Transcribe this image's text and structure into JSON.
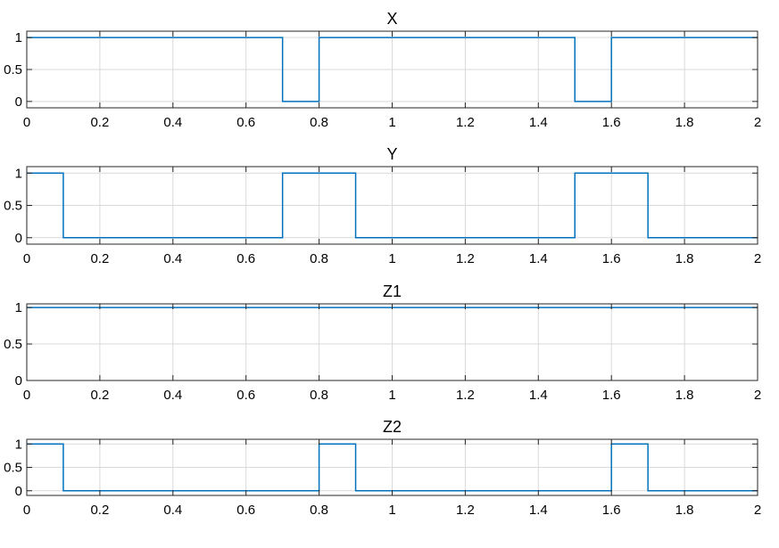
{
  "chart_data": [
    {
      "type": "line",
      "title": "X",
      "xlim": [
        0,
        2
      ],
      "ylim": [
        -0.1,
        1.1
      ],
      "xticks": [
        0,
        0.2,
        0.4,
        0.6,
        0.8,
        1,
        1.2,
        1.4,
        1.6,
        1.8,
        2
      ],
      "xticklabels": [
        "0",
        "0.2",
        "0.4",
        "0.6",
        "0.8",
        "1",
        "1.2",
        "1.4",
        "1.6",
        "1.8",
        "2"
      ],
      "yticks": [
        0,
        0.5,
        1
      ],
      "yticklabels": [
        "0",
        "0.5",
        "1"
      ],
      "grid": true,
      "color": "#0072BD",
      "series": [
        {
          "x": [
            0,
            0.7,
            0.7,
            0.8,
            0.8,
            1.5,
            1.5,
            1.6,
            1.6,
            2
          ],
          "y": [
            1,
            1,
            0,
            0,
            1,
            1,
            0,
            0,
            1,
            1
          ]
        }
      ]
    },
    {
      "type": "line",
      "title": "Y",
      "xlim": [
        0,
        2
      ],
      "ylim": [
        -0.1,
        1.1
      ],
      "xticks": [
        0,
        0.2,
        0.4,
        0.6,
        0.8,
        1,
        1.2,
        1.4,
        1.6,
        1.8,
        2
      ],
      "xticklabels": [
        "0",
        "0.2",
        "0.4",
        "0.6",
        "0.8",
        "1",
        "1.2",
        "1.4",
        "1.6",
        "1.8",
        "2"
      ],
      "yticks": [
        0,
        0.5,
        1
      ],
      "yticklabels": [
        "0",
        "0.5",
        "1"
      ],
      "grid": true,
      "color": "#0072BD",
      "series": [
        {
          "x": [
            0,
            0.1,
            0.1,
            0.7,
            0.7,
            0.9,
            0.9,
            1.5,
            1.5,
            1.7,
            1.7,
            2
          ],
          "y": [
            1,
            1,
            0,
            0,
            1,
            1,
            0,
            0,
            1,
            1,
            0,
            0
          ]
        }
      ]
    },
    {
      "type": "line",
      "title": "Z1",
      "xlim": [
        0,
        2
      ],
      "ylim": [
        0,
        1.05
      ],
      "xticks": [
        0,
        0.2,
        0.4,
        0.6,
        0.8,
        1,
        1.2,
        1.4,
        1.6,
        1.8,
        2
      ],
      "xticklabels": [
        "0",
        "0.2",
        "0.4",
        "0.6",
        "0.8",
        "1",
        "1.2",
        "1.4",
        "1.6",
        "1.8",
        "2"
      ],
      "yticks": [
        0,
        0.5,
        1
      ],
      "yticklabels": [
        "0",
        "0.5",
        "1"
      ],
      "grid": true,
      "color": "#0072BD",
      "series": [
        {
          "x": [
            0,
            2
          ],
          "y": [
            1,
            1
          ]
        }
      ]
    },
    {
      "type": "line",
      "title": "Z2",
      "xlim": [
        0,
        2
      ],
      "ylim": [
        -0.1,
        1.1
      ],
      "xticks": [
        0,
        0.2,
        0.4,
        0.6,
        0.8,
        1,
        1.2,
        1.4,
        1.6,
        1.8,
        2
      ],
      "xticklabels": [
        "0",
        "0.2",
        "0.4",
        "0.6",
        "0.8",
        "1",
        "1.2",
        "1.4",
        "1.6",
        "1.8",
        "2"
      ],
      "yticks": [
        0,
        0.5,
        1
      ],
      "yticklabels": [
        "0",
        "0.5",
        "1"
      ],
      "grid": true,
      "color": "#0072BD",
      "series": [
        {
          "x": [
            0,
            0.1,
            0.1,
            0.8,
            0.8,
            0.9,
            0.9,
            1.6,
            1.6,
            1.7,
            1.7,
            2
          ],
          "y": [
            1,
            1,
            0,
            0,
            1,
            1,
            0,
            0,
            1,
            1,
            0,
            0
          ]
        }
      ]
    }
  ]
}
